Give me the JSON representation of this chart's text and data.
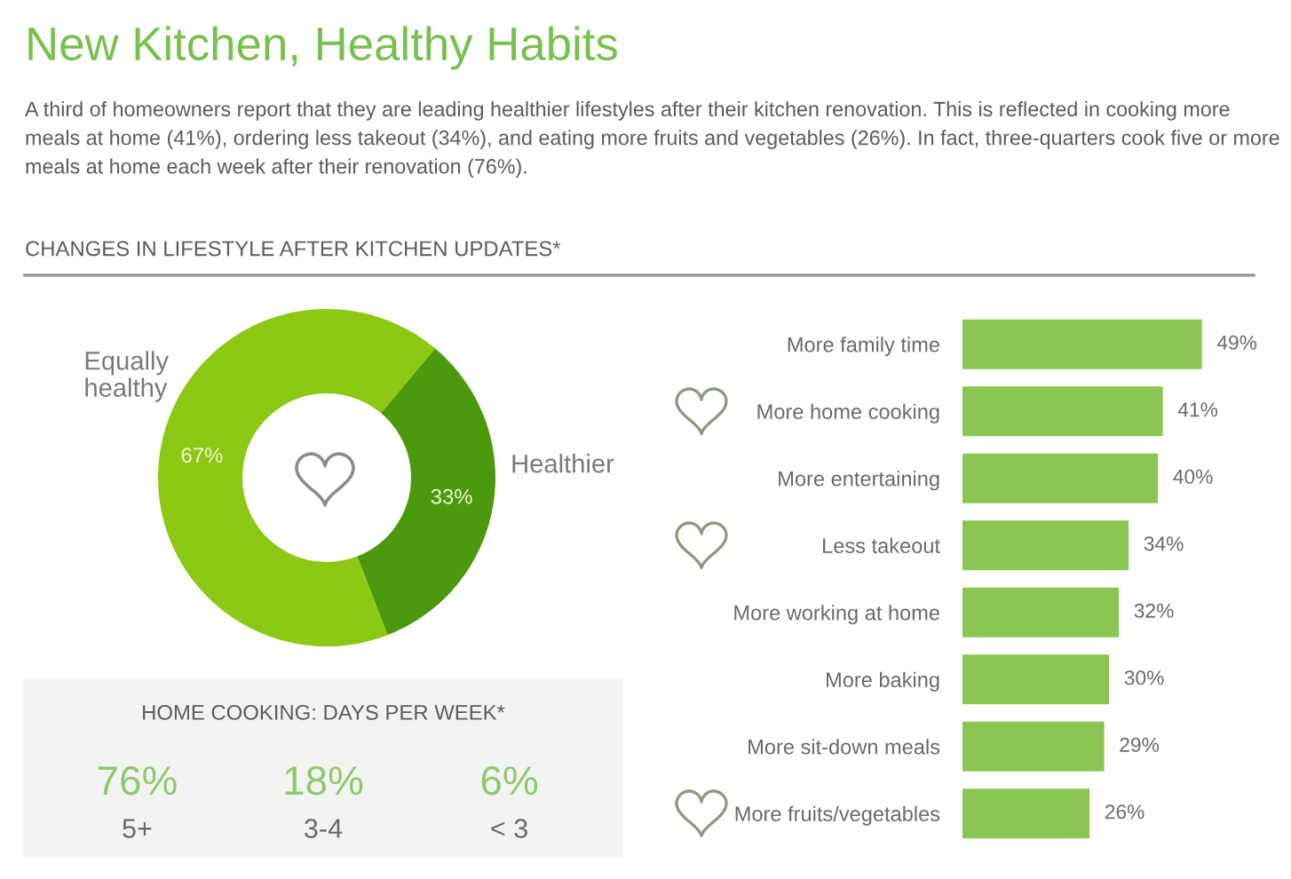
{
  "chart_data": [
    {
      "type": "donut",
      "title": "New Kitchen, Healthy Habits",
      "subtitle": "A third of homeowners report that they are leading healthier lifestyles after their kitchen renovation. This is reflected in cooking more meals at home (41%), ordering less takeout (34%), and eating more fruits and vegetables (26%). In fact, three-quarters cook five or more meals at home each week after their renovation (76%).",
      "annotations": [
        "CHANGES IN LIFESTYLE AFTER KITCHEN UPDATES*"
      ],
      "categories": [
        "Equally healthy",
        "Healthier"
      ],
      "values": [
        67,
        33
      ],
      "colors": [
        "#8cc814",
        "#4b990c"
      ],
      "value_labels": [
        "67%",
        "33%"
      ]
    },
    {
      "type": "bar",
      "orientation": "horizontal",
      "categories": [
        "More family time",
        "More home cooking",
        "More entertaining",
        "Less takeout",
        "More working at home",
        "More baking",
        "More sit-down meals",
        "More fruits/vegetables"
      ],
      "values": [
        49,
        41,
        40,
        34,
        32,
        30,
        29,
        26
      ],
      "color": "#8bc653",
      "value_labels": [
        "49%",
        "41%",
        "40%",
        "34%",
        "32%",
        "30%",
        "29%",
        "26%"
      ],
      "tick_labels": "y"
    },
    {
      "type": "other",
      "title": "HOME COOKING: DAYS PER WEEK*",
      "categories": [
        "5+",
        "3-4",
        "< 3"
      ],
      "values": [
        76,
        18,
        6
      ],
      "value_labels": [
        "76%",
        "18%",
        "6%"
      ]
    }
  ]
}
